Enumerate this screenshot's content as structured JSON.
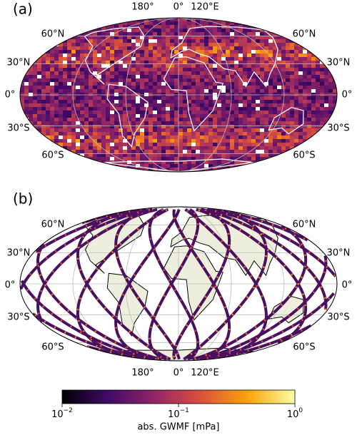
{
  "panels": [
    {
      "label": "(a)"
    },
    {
      "label": "(b)"
    }
  ],
  "lat_labels": [
    "60°N",
    "30°N",
    "0°",
    "30°S",
    "60°S"
  ],
  "lon_labels": [
    "180°",
    "0°",
    "120°E"
  ],
  "colorbar": {
    "label": "abs. GWMF [mPa]",
    "scale": "log",
    "range": [
      0.01,
      1
    ],
    "ticks": [
      {
        "value": 0.01,
        "label": "10",
        "exponent": "−2"
      },
      {
        "value": 0.1,
        "label": "10",
        "exponent": "−1"
      },
      {
        "value": 1,
        "label": "10",
        "exponent": "0"
      }
    ]
  }
}
